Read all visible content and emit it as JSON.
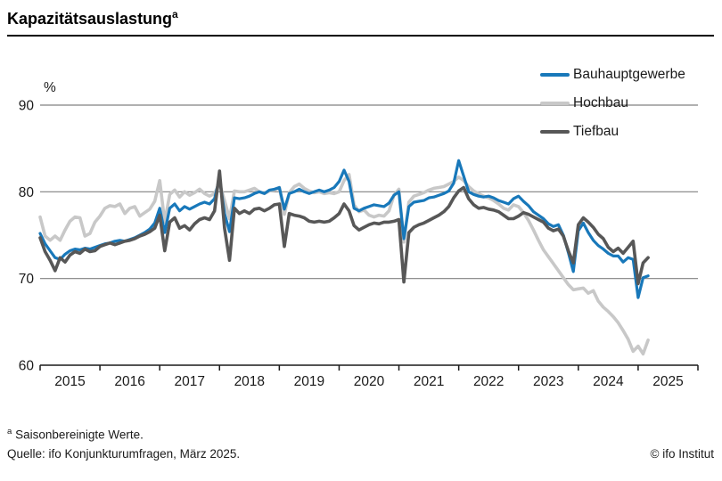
{
  "header": {
    "title": "Kapazitätsauslastung",
    "title_superscript": "a"
  },
  "legend": {
    "items": [
      {
        "label": "Bauhauptgewerbe",
        "color": "#1878ba"
      },
      {
        "label": "Hochbau",
        "color": "#c8c8c8"
      },
      {
        "label": "Tiefbau",
        "color": "#575757"
      }
    ]
  },
  "footer": {
    "footnote_superscript": "a",
    "footnote": "Saisonbereinigte Werte.",
    "source": "Quelle: ifo Konjunkturumfragen, März 2025.",
    "copyright": "© ifo Institut"
  },
  "chart_data": {
    "type": "line",
    "title": "Kapazitätsauslastung",
    "unit": "%",
    "frequency": "monthly",
    "start": "2015-01",
    "end": "2025-03",
    "ylim": [
      60,
      90
    ],
    "y_ticks": [
      90,
      80,
      70,
      60
    ],
    "y_unit_label": "%",
    "x_tick_labels": [
      "2015",
      "2016",
      "2017",
      "2018",
      "2019",
      "2020",
      "2021",
      "2022",
      "2023",
      "2024",
      "2025"
    ],
    "grid": "horizontal",
    "legend_position": "top-right",
    "series": [
      {
        "name": "Hochbau",
        "color": "#c8c8c8",
        "width": 3.6,
        "values": [
          77.1,
          74.9,
          74.4,
          74.9,
          74.4,
          75.6,
          76.6,
          77.1,
          77.0,
          74.9,
          75.2,
          76.5,
          77.2,
          78.1,
          78.4,
          78.3,
          78.6,
          77.5,
          78.1,
          78.3,
          77.2,
          77.6,
          78.0,
          78.9,
          81.3,
          76.5,
          79.7,
          80.2,
          79.4,
          80.0,
          79.6,
          79.9,
          80.3,
          79.8,
          79.5,
          79.8,
          81.0,
          79.0,
          76.9,
          80.1,
          80.0,
          80.0,
          80.2,
          80.4,
          80.0,
          79.8,
          80.1,
          80.2,
          80.5,
          77.4,
          79.9,
          80.6,
          80.9,
          80.4,
          80.1,
          79.9,
          80.0,
          79.8,
          79.9,
          79.8,
          80.0,
          81.3,
          82.0,
          78.5,
          77.7,
          77.9,
          77.3,
          77.1,
          77.3,
          77.2,
          77.8,
          79.6,
          80.3,
          74.2,
          78.8,
          79.5,
          79.7,
          79.9,
          80.2,
          80.4,
          80.5,
          80.6,
          80.9,
          81.2,
          81.7,
          81.3,
          80.6,
          80.1,
          79.8,
          79.5,
          79.3,
          79.0,
          78.6,
          78.1,
          77.9,
          78.5,
          78.3,
          77.6,
          76.7,
          75.6,
          74.4,
          73.3,
          72.5,
          71.7,
          70.9,
          70.1,
          69.3,
          68.7,
          68.8,
          68.9,
          68.3,
          68.6,
          67.4,
          66.7,
          66.2,
          65.6,
          64.9,
          64.0,
          63.0,
          61.6,
          62.2,
          61.3,
          62.9
        ]
      },
      {
        "name": "Bauhauptgewerbe",
        "color": "#1878ba",
        "width": 3.2,
        "values": [
          75.2,
          74.0,
          73.2,
          72.4,
          72.2,
          72.8,
          73.2,
          73.4,
          73.3,
          73.5,
          73.4,
          73.6,
          73.8,
          74.0,
          74.1,
          74.3,
          74.4,
          74.3,
          74.5,
          74.7,
          75.0,
          75.3,
          75.7,
          76.4,
          78.1,
          75.3,
          78.1,
          78.6,
          77.8,
          78.3,
          78.0,
          78.3,
          78.6,
          78.8,
          78.6,
          79.2,
          81.6,
          77.5,
          75.4,
          79.3,
          79.2,
          79.3,
          79.5,
          79.8,
          80.0,
          79.8,
          80.2,
          80.3,
          80.5,
          78.0,
          79.8,
          80.0,
          80.3,
          80.0,
          79.8,
          80.0,
          80.2,
          80.0,
          80.2,
          80.5,
          81.2,
          82.5,
          81.2,
          78.1,
          77.8,
          78.1,
          78.3,
          78.5,
          78.4,
          78.3,
          78.7,
          79.6,
          80.0,
          74.6,
          78.3,
          78.8,
          78.9,
          79.0,
          79.3,
          79.4,
          79.6,
          79.8,
          80.1,
          81.0,
          83.6,
          81.8,
          80.0,
          79.7,
          79.5,
          79.4,
          79.5,
          79.3,
          79.0,
          78.8,
          78.6,
          79.2,
          79.5,
          78.9,
          78.4,
          77.7,
          77.3,
          76.9,
          76.3,
          76.0,
          76.2,
          75.0,
          73.0,
          70.8,
          75.5,
          76.4,
          75.3,
          74.4,
          73.8,
          73.4,
          72.9,
          72.6,
          72.6,
          71.9,
          72.4,
          72.2,
          67.8,
          70.1,
          70.3
        ]
      },
      {
        "name": "Tiefbau",
        "color": "#575757",
        "width": 3.6,
        "values": [
          74.7,
          73.1,
          72.1,
          70.9,
          72.4,
          71.9,
          72.7,
          73.1,
          72.9,
          73.4,
          73.1,
          73.2,
          73.7,
          73.9,
          74.1,
          73.9,
          74.1,
          74.3,
          74.4,
          74.6,
          74.9,
          75.1,
          75.4,
          75.8,
          77.3,
          73.2,
          76.5,
          77.0,
          75.8,
          76.1,
          75.6,
          76.3,
          76.8,
          77.0,
          76.8,
          77.8,
          82.4,
          75.8,
          72.1,
          78.1,
          77.5,
          77.8,
          77.5,
          78.0,
          78.1,
          77.8,
          78.1,
          78.5,
          78.6,
          73.7,
          77.5,
          77.3,
          77.2,
          77.0,
          76.6,
          76.5,
          76.6,
          76.5,
          76.6,
          77.0,
          77.5,
          78.6,
          77.8,
          76.1,
          75.6,
          75.9,
          76.2,
          76.4,
          76.3,
          76.5,
          76.5,
          76.6,
          76.8,
          69.6,
          75.3,
          75.9,
          76.2,
          76.4,
          76.7,
          77.0,
          77.3,
          77.7,
          78.3,
          79.3,
          80.1,
          80.5,
          79.2,
          78.5,
          78.1,
          78.2,
          78.0,
          77.9,
          77.7,
          77.3,
          76.9,
          76.9,
          77.2,
          77.6,
          77.4,
          77.1,
          76.8,
          76.5,
          75.8,
          75.5,
          75.7,
          74.9,
          73.2,
          71.8,
          76.2,
          77.0,
          76.5,
          75.9,
          75.1,
          74.6,
          73.6,
          73.1,
          73.5,
          72.9,
          73.6,
          74.3,
          69.4,
          71.8,
          72.4
        ]
      }
    ]
  }
}
